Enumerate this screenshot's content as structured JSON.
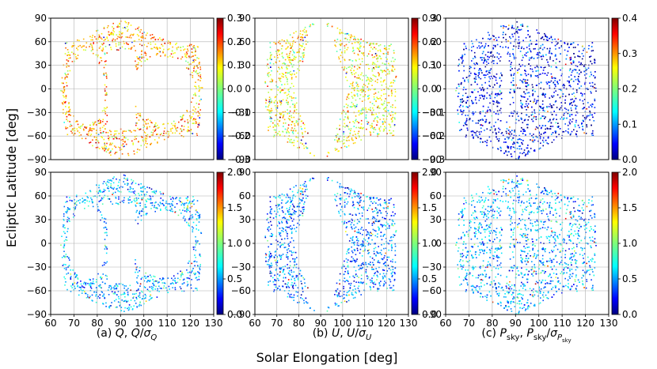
{
  "figure": {
    "ylabel": "Ecliptic Latitude [deg]",
    "xlabel": "Solar Elongation [deg]",
    "captions": [
      {
        "prefix": "(a) ",
        "sym1": "Q",
        "sep": ", ",
        "sym2": "Q",
        "slash": "/",
        "sigma": "σ",
        "sub": "Q"
      },
      {
        "prefix": "(b) ",
        "sym1": "U",
        "sep": ", ",
        "sym2": "U",
        "slash": "/",
        "sigma": "σ",
        "sub": "U"
      },
      {
        "prefix": "(c) ",
        "sym1": "P",
        "sub1": "sky",
        "sep": ", ",
        "sym2": "P",
        "sub2": "sky",
        "slash": "/",
        "sigma": "σ",
        "sub": "P",
        "subsub": "sky"
      }
    ]
  },
  "chart_data": [
    {
      "type": "scatter",
      "panel": "(a) Q",
      "quantity": "Q",
      "xlim": [
        60,
        130
      ],
      "ylim": [
        -90,
        90
      ],
      "xticks": [
        "60",
        "70",
        "80",
        "90",
        "100",
        "110",
        "120",
        "130"
      ],
      "yticks": [
        "-90",
        "-60",
        "-30",
        "0",
        "30",
        "60",
        "90"
      ],
      "colorbar": {
        "range": [
          -0.3,
          0.3
        ],
        "ticks": [
          "-0.3",
          "-0.2",
          "-0.1",
          "0.0",
          "0.1",
          "0.2",
          "0.3"
        ]
      },
      "grid": true,
      "dominant_value": 0.12
    },
    {
      "type": "scatter",
      "panel": "(b) U",
      "quantity": "U",
      "xlim": [
        60,
        130
      ],
      "ylim": [
        -90,
        90
      ],
      "xticks": [
        "60",
        "70",
        "80",
        "90",
        "100",
        "110",
        "120",
        "130"
      ],
      "yticks": [
        "-90",
        "-60",
        "-30",
        "0",
        "30",
        "60",
        "90"
      ],
      "colorbar": {
        "range": [
          -0.3,
          0.3
        ],
        "ticks": [
          "-0.3",
          "-0.2",
          "-0.1",
          "0.0",
          "0.1",
          "0.2",
          "0.3"
        ]
      },
      "grid": true,
      "dominant_value": 0.07
    },
    {
      "type": "scatter",
      "panel": "(c) P_sky",
      "quantity": "P_sky",
      "xlim": [
        60,
        130
      ],
      "ylim": [
        -90,
        90
      ],
      "xticks": [
        "60",
        "70",
        "80",
        "90",
        "100",
        "110",
        "120",
        "130"
      ],
      "yticks": [
        "-90",
        "-60",
        "-30",
        "0",
        "30",
        "60",
        "90"
      ],
      "colorbar": {
        "range": [
          0.0,
          0.4
        ],
        "ticks": [
          "0.0",
          "0.1",
          "0.2",
          "0.3",
          "0.4"
        ]
      },
      "grid": true,
      "dominant_value": 0.05
    },
    {
      "type": "scatter",
      "panel": "(a) Q/sigma_Q",
      "quantity": "Q/σ_Q",
      "xlim": [
        60,
        130
      ],
      "ylim": [
        -90,
        90
      ],
      "xticks": [
        "60",
        "70",
        "80",
        "90",
        "100",
        "110",
        "120",
        "130"
      ],
      "yticks": [
        "-90",
        "-60",
        "-30",
        "0",
        "30",
        "60",
        "90"
      ],
      "colorbar": {
        "range": [
          0.0,
          2.0
        ],
        "ticks": [
          "0.0",
          "0.5",
          "1.0",
          "1.5",
          "2.0"
        ]
      },
      "grid": true,
      "dominant_value": 0.6
    },
    {
      "type": "scatter",
      "panel": "(b) U/sigma_U",
      "quantity": "U/σ_U",
      "xlim": [
        60,
        130
      ],
      "ylim": [
        -90,
        90
      ],
      "xticks": [
        "60",
        "70",
        "80",
        "90",
        "100",
        "110",
        "120",
        "130"
      ],
      "yticks": [
        "-90",
        "-60",
        "-30",
        "0",
        "30",
        "60",
        "90"
      ],
      "colorbar": {
        "range": [
          0.0,
          2.0
        ],
        "ticks": [
          "0.0",
          "0.5",
          "1.0",
          "1.5",
          "2.0"
        ]
      },
      "grid": true,
      "dominant_value": 0.5
    },
    {
      "type": "scatter",
      "panel": "(c) P_sky/sigma_Psky",
      "quantity": "P_sky/σ_Psky",
      "xlim": [
        60,
        130
      ],
      "ylim": [
        -90,
        90
      ],
      "xticks": [
        "60",
        "70",
        "80",
        "90",
        "100",
        "110",
        "120",
        "130"
      ],
      "yticks": [
        "-90",
        "-60",
        "-30",
        "0",
        "30",
        "60",
        "90"
      ],
      "colorbar": {
        "range": [
          0.0,
          2.0
        ],
        "ticks": [
          "0.0",
          "0.5",
          "1.0",
          "1.5",
          "2.0"
        ]
      },
      "grid": true,
      "dominant_value": 0.6
    }
  ]
}
